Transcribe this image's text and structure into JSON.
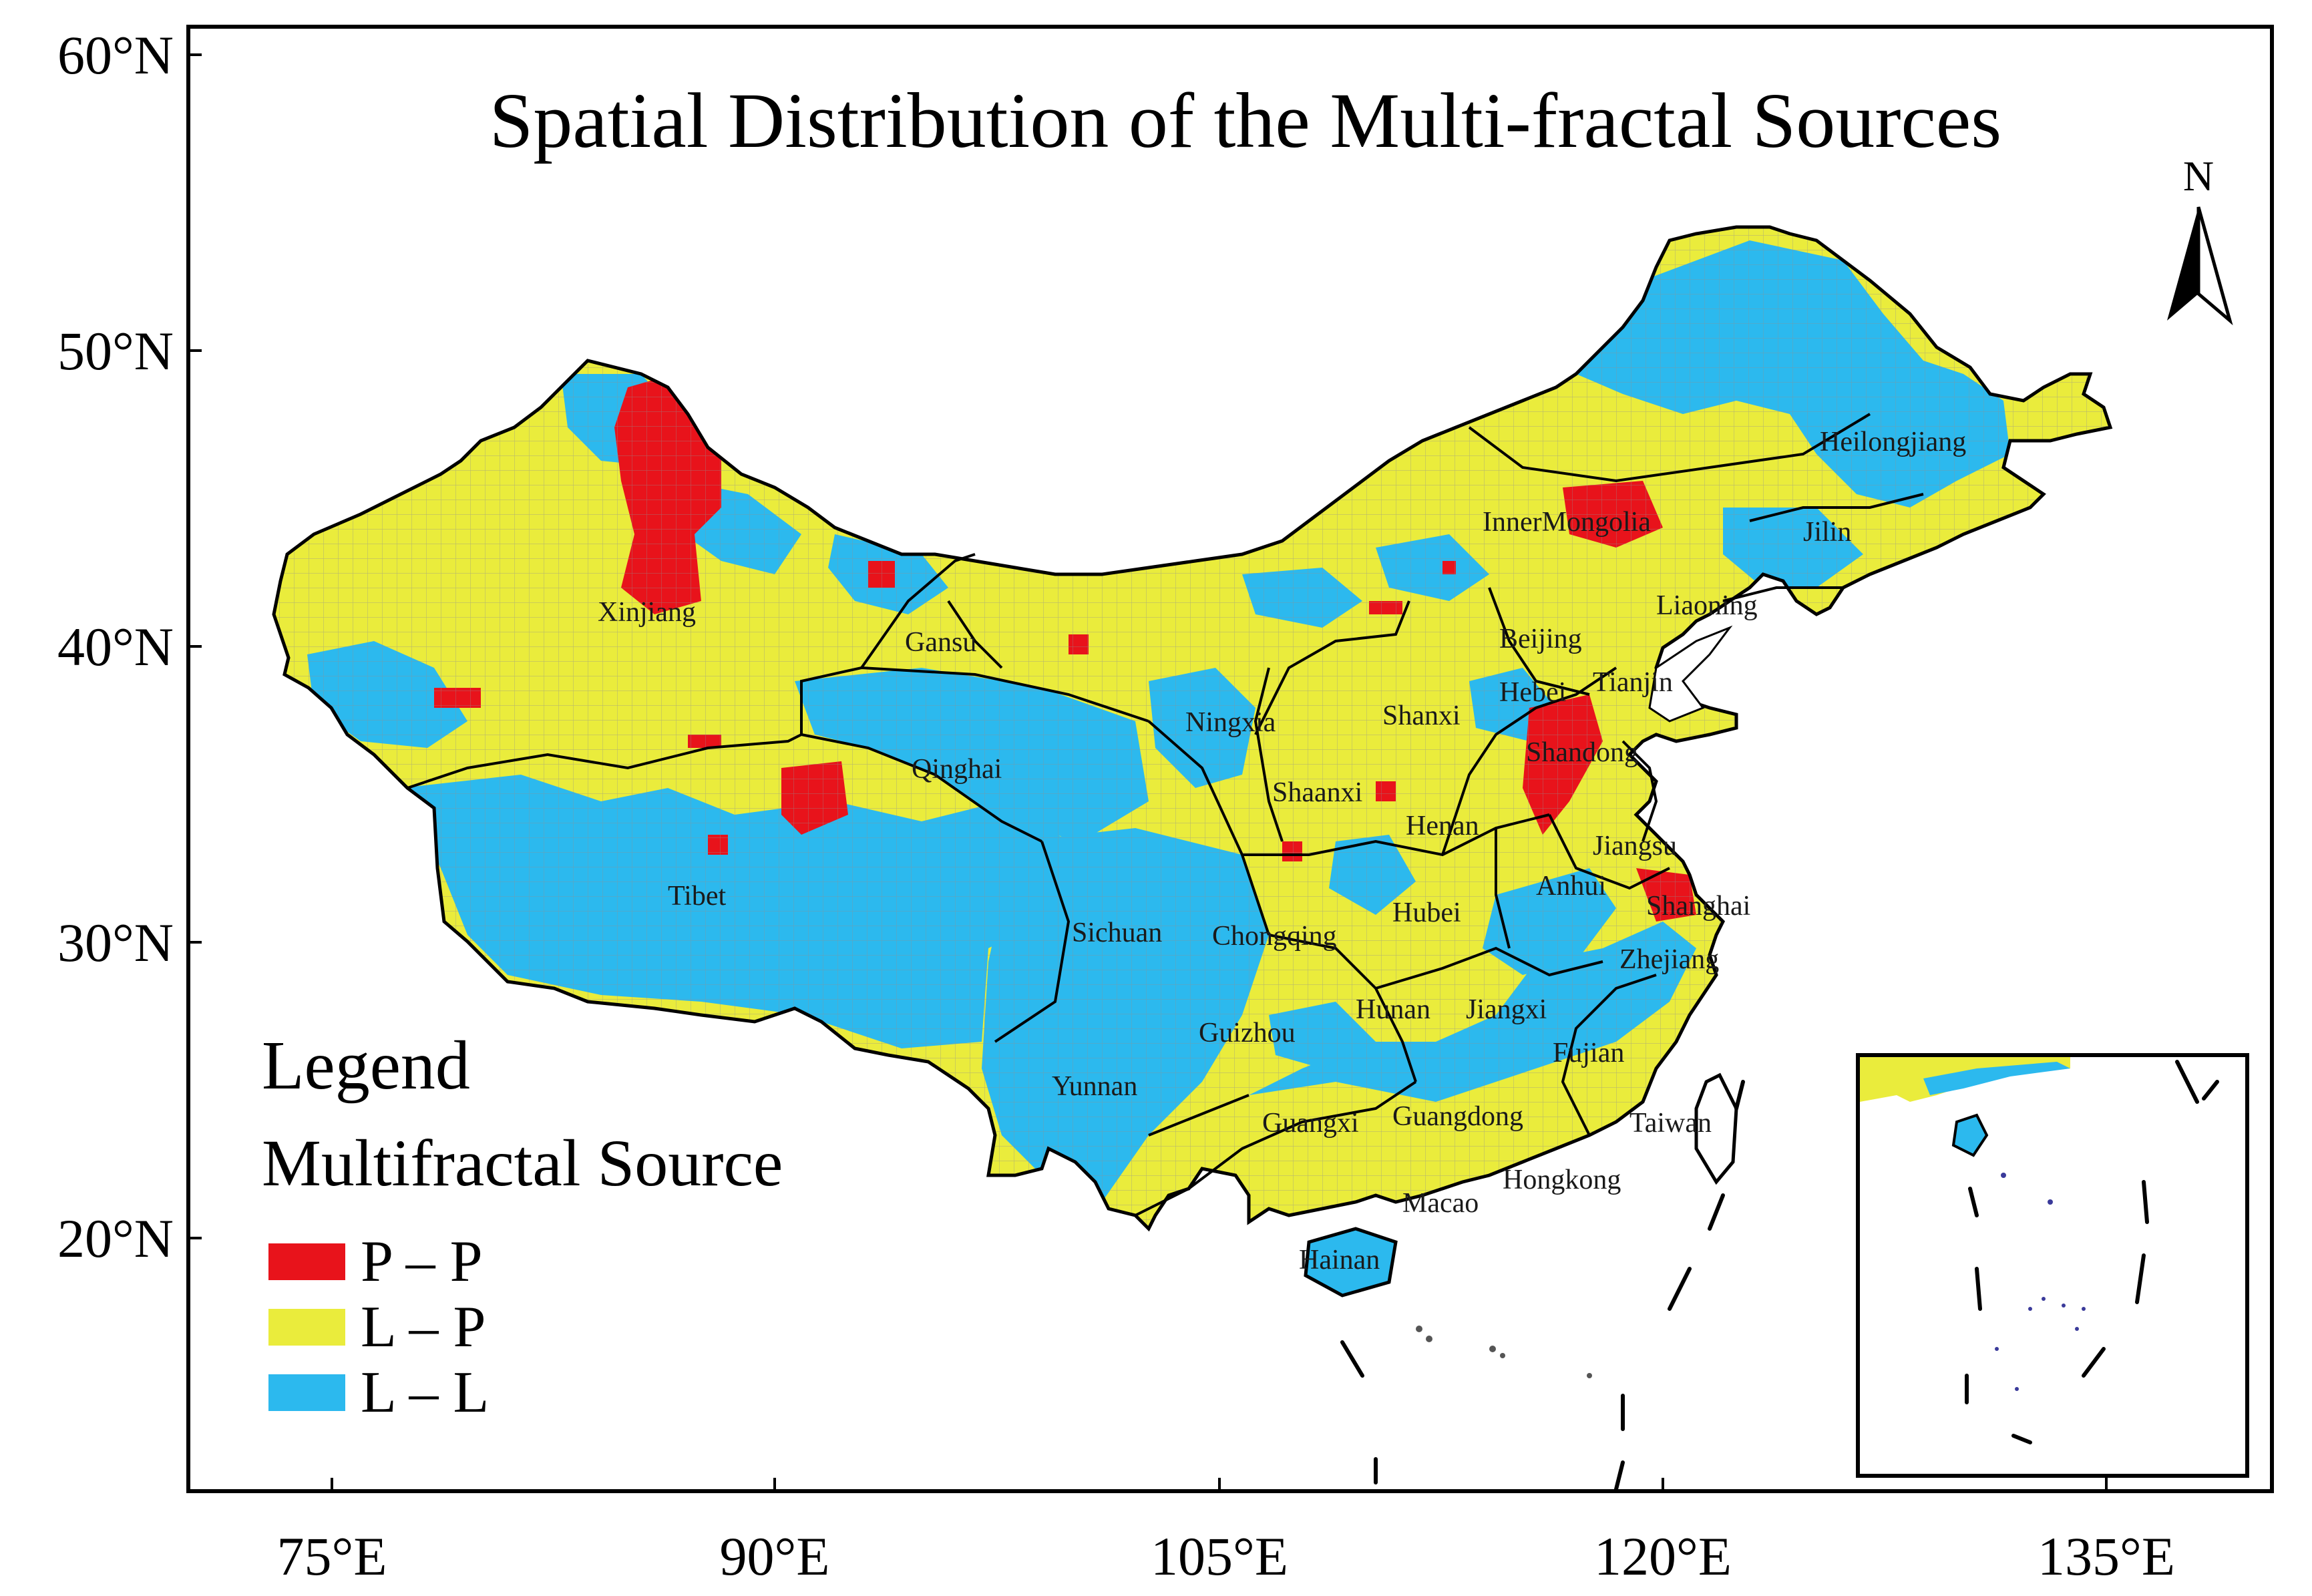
{
  "title": "Spatial Distribution of the Multi-fractal Sources",
  "north_arrow": "N",
  "lat_labels": [
    "60°N",
    "50°N",
    "40°N",
    "30°N",
    "20°N"
  ],
  "lon_labels": [
    "75°E",
    "90°E",
    "105°E",
    "120°E",
    "135°E"
  ],
  "legend": {
    "heading": "Legend",
    "subheading": "Multifractal Source",
    "items": [
      {
        "label": "P – P",
        "color": "#e8131b"
      },
      {
        "label": "L – P",
        "color": "#eaec3c"
      },
      {
        "label": "L – L",
        "color": "#2cb9ee"
      }
    ]
  },
  "regions": {
    "xinjiang": "Xinjiang",
    "tibet": "Tibet",
    "qinghai": "Qinghai",
    "gansu": "Gansu",
    "sichuan": "Sichuan",
    "yunnan": "Yunnan",
    "inner_mongolia": "InnerMongolia",
    "heilongjiang": "Heilongjiang",
    "jilin": "Jilin",
    "liaoning": "Liaoning",
    "beijing": "Beijing",
    "tianjin": "Tianjin",
    "hebei": "Hebei",
    "shanxi": "Shanxi",
    "ningxia": "Ningxia",
    "shaanxi": "Shaanxi",
    "shandong": "Shandong",
    "henan": "Henan",
    "jiangsu": "Jiangsu",
    "anhui": "Anhui",
    "shanghai": "Shanghai",
    "hubei": "Hubei",
    "chongqing": "Chongqing",
    "zhejiang": "Zhejiang",
    "guizhou": "Guizhou",
    "hunan": "Hunan",
    "jiangxi": "Jiangxi",
    "fujian": "Fujian",
    "guangxi": "Guangxi",
    "guangdong": "Guangdong",
    "taiwan": "Taiwan",
    "hongkong": "Hongkong",
    "macao": "Macao",
    "hainan": "Hainan"
  },
  "colors": {
    "frame": "#000000",
    "boundary": "#000000",
    "grid_line": "#9a9a9a"
  }
}
